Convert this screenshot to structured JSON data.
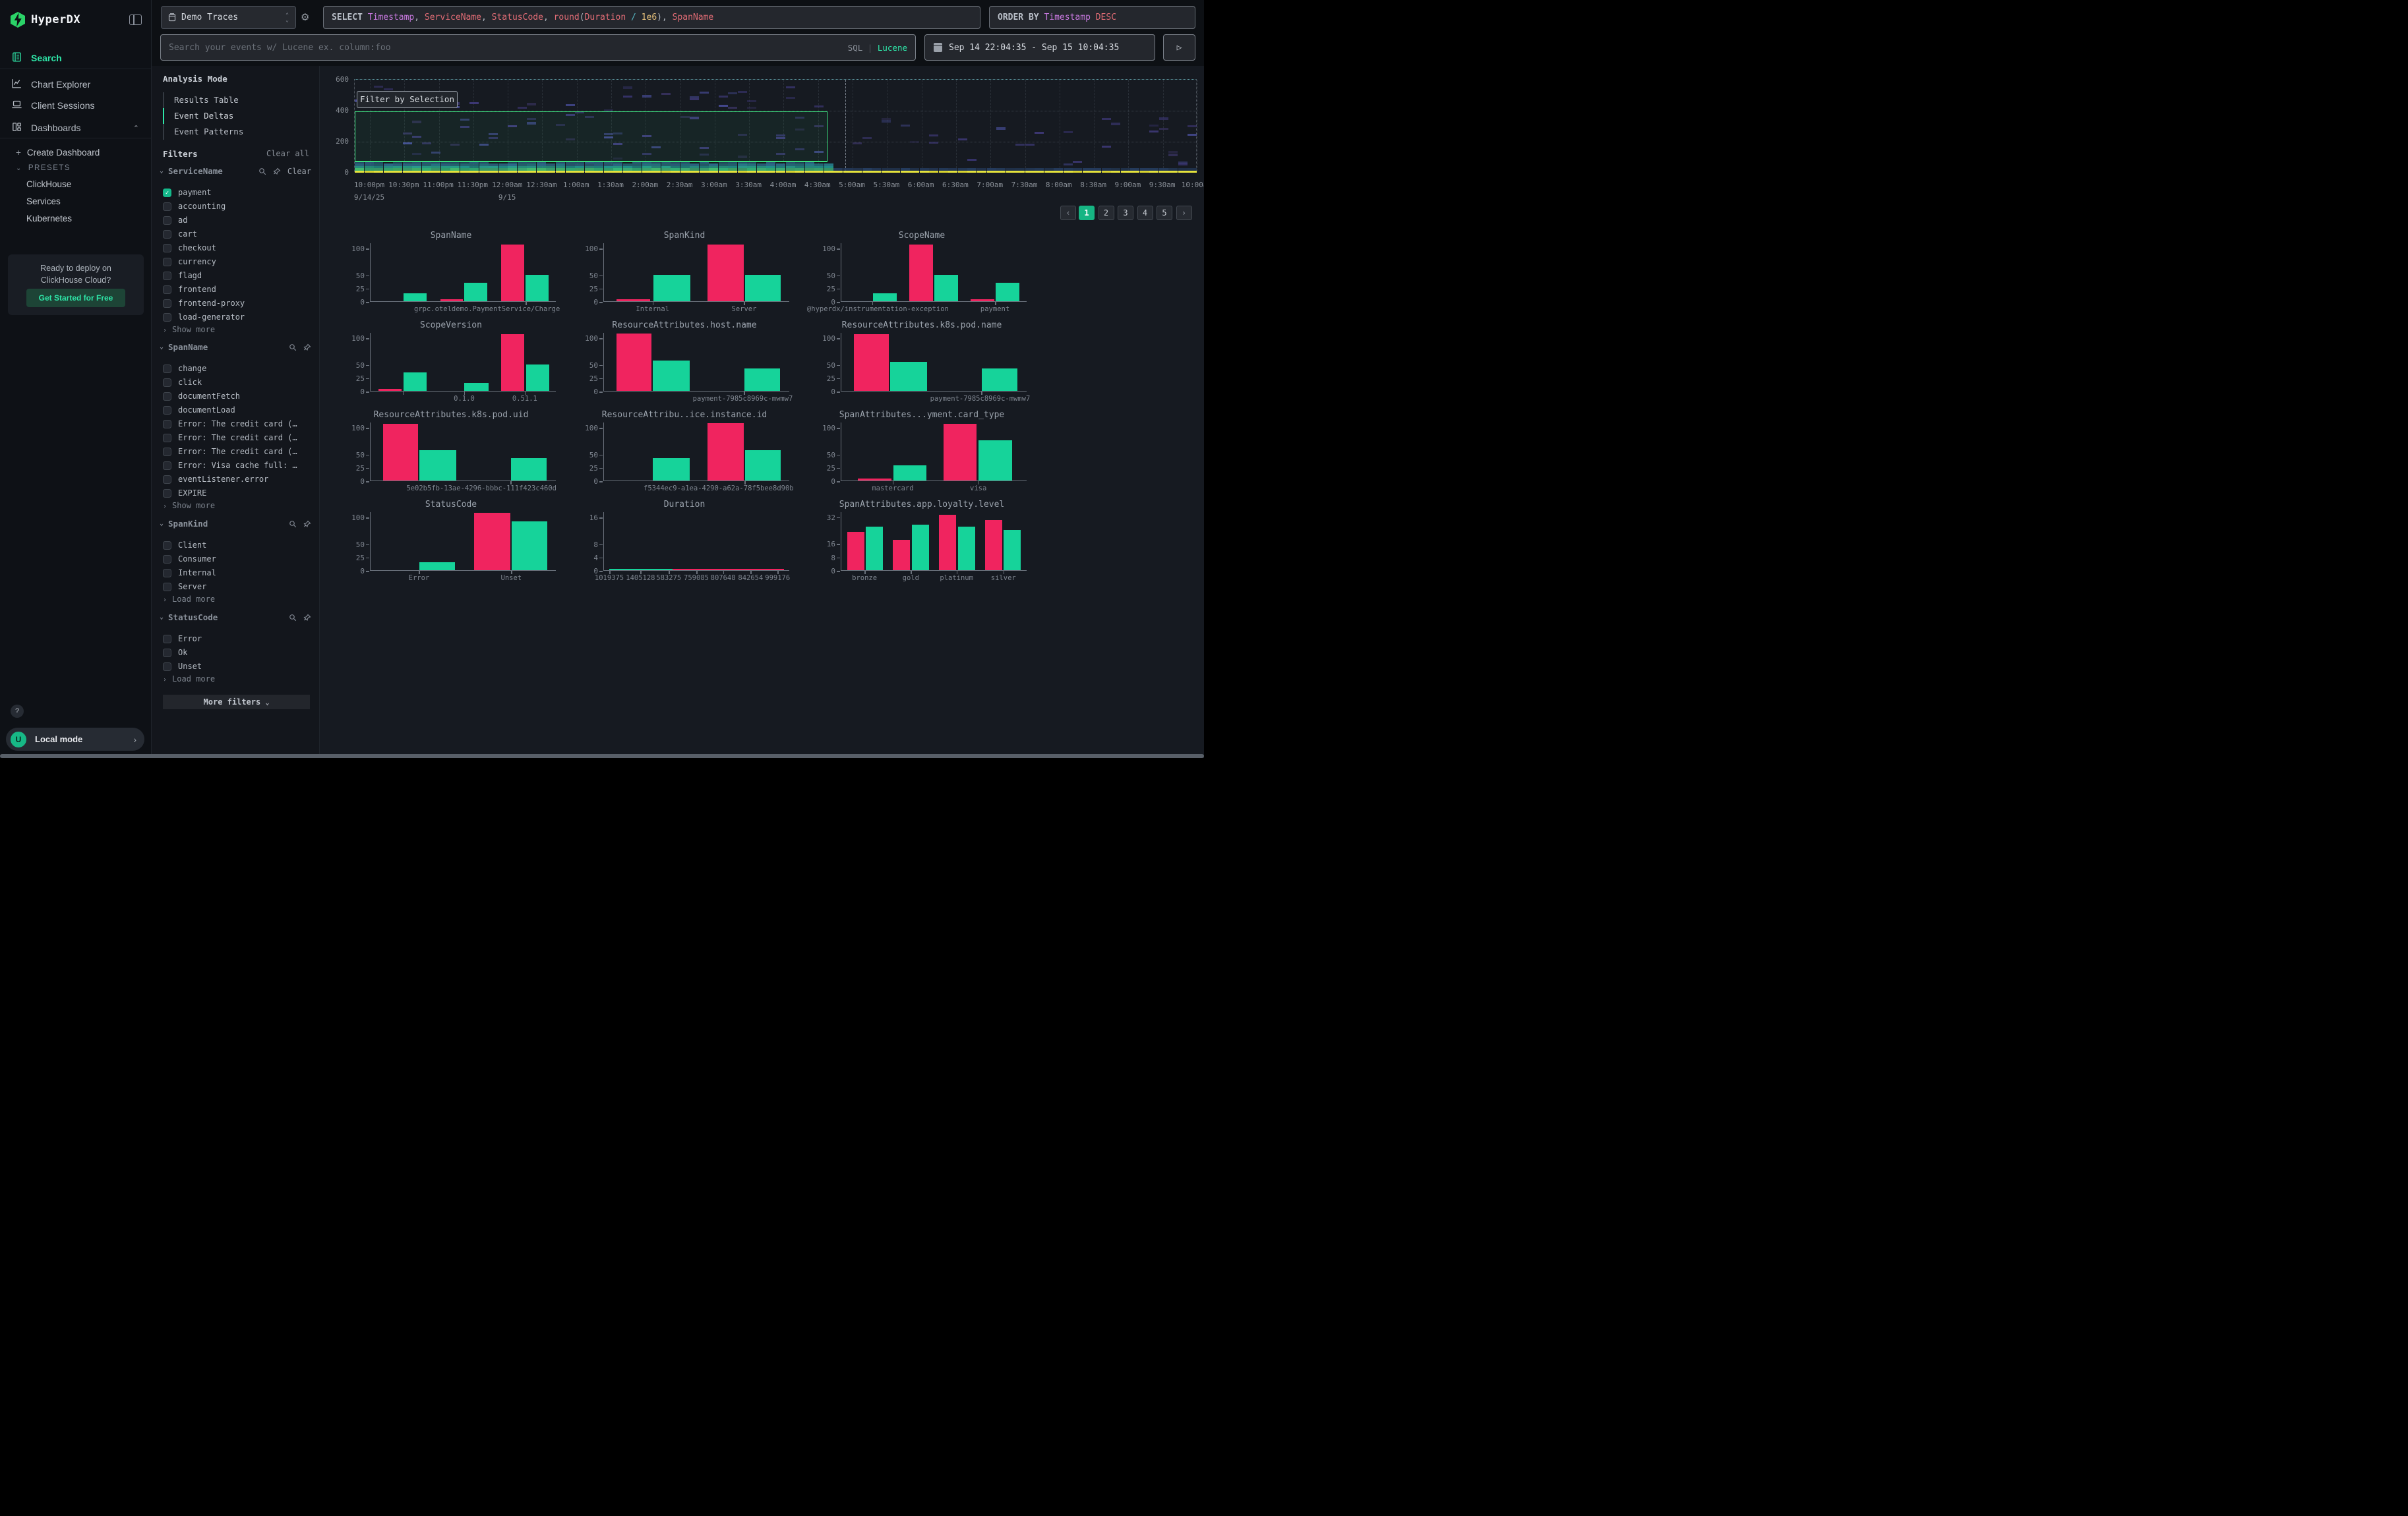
{
  "app": {
    "name": "HyperDX"
  },
  "colors": {
    "accent_green": "#2ee6a8",
    "bar_red": "#f0245f",
    "bar_green": "#16d39a",
    "heat_yellow": "#e5e33c",
    "selection_green": "#3ae17d",
    "checkbox_green": "#14b88a"
  },
  "sidebar": {
    "logo_text": "HyperDX",
    "nav": [
      {
        "label": "Search",
        "active": true,
        "icon": "journal-icon"
      },
      {
        "label": "Chart Explorer",
        "active": false,
        "icon": "chart-icon"
      },
      {
        "label": "Client Sessions",
        "active": false,
        "icon": "laptop-icon"
      },
      {
        "label": "Dashboards",
        "active": false,
        "icon": "dashboard-icon",
        "chevron": "up"
      }
    ],
    "create_dashboard": "Create Dashboard",
    "presets_label": "PRESETS",
    "presets": [
      "ClickHouse",
      "Services",
      "Kubernetes"
    ],
    "promo": {
      "line1": "Ready to deploy on",
      "line2": "ClickHouse Cloud?",
      "cta": "Get Started for Free"
    },
    "help_label": "?",
    "user_initial": "U",
    "local_mode_label": "Local mode"
  },
  "topbar": {
    "source": "Demo Traces",
    "select_tokens": [
      [
        "kw",
        "SELECT "
      ],
      [
        "purple",
        "Timestamp"
      ],
      [
        "punct",
        ", "
      ],
      [
        "red",
        "ServiceName"
      ],
      [
        "punct",
        ", "
      ],
      [
        "red",
        "StatusCode"
      ],
      [
        "punct",
        ", "
      ],
      [
        "red",
        "round"
      ],
      [
        "punct",
        "("
      ],
      [
        "red",
        "Duration"
      ],
      [
        "plain",
        " "
      ],
      [
        "cyan",
        "/"
      ],
      [
        "plain",
        " "
      ],
      [
        "gold",
        "1e6"
      ],
      [
        "punct",
        "), "
      ],
      [
        "red",
        "SpanName"
      ]
    ],
    "order_tokens": [
      [
        "kw",
        "ORDER BY "
      ],
      [
        "purple",
        "Timestamp "
      ],
      [
        "red",
        "DESC"
      ]
    ],
    "search_placeholder": "Search your events w/ Lucene ex. column:foo",
    "lang_sql": "SQL",
    "lang_sep": " | ",
    "lang_lucene": "Lucene",
    "date_range": "Sep 14 22:04:35 - Sep 15 10:04:35",
    "run_glyph": "▷"
  },
  "filters_panel": {
    "analysis_title": "Analysis Mode",
    "modes": [
      {
        "label": "Results Table",
        "active": false
      },
      {
        "label": "Event Deltas",
        "active": true
      },
      {
        "label": "Event Patterns",
        "active": false
      }
    ],
    "filters_title": "Filters",
    "clear_all": "Clear all",
    "groups": [
      {
        "name": "ServiceName",
        "clear": "Clear",
        "more": "Show more",
        "items": [
          {
            "label": "payment",
            "checked": true
          },
          {
            "label": "accounting"
          },
          {
            "label": "ad"
          },
          {
            "label": "cart"
          },
          {
            "label": "checkout"
          },
          {
            "label": "currency"
          },
          {
            "label": "flagd"
          },
          {
            "label": "frontend"
          },
          {
            "label": "frontend-proxy"
          },
          {
            "label": "load-generator"
          }
        ]
      },
      {
        "name": "SpanName",
        "more": "Show more",
        "items": [
          {
            "label": "change"
          },
          {
            "label": "click"
          },
          {
            "label": "documentFetch"
          },
          {
            "label": "documentLoad"
          },
          {
            "label": "Error: The credit card (…"
          },
          {
            "label": "Error: The credit card (…"
          },
          {
            "label": "Error: The credit card (…"
          },
          {
            "label": "Error: Visa cache full: …"
          },
          {
            "label": "eventListener.error"
          },
          {
            "label": "EXPIRE"
          }
        ]
      },
      {
        "name": "SpanKind",
        "more": "Load more",
        "items": [
          {
            "label": "Client"
          },
          {
            "label": "Consumer"
          },
          {
            "label": "Internal"
          },
          {
            "label": "Server"
          }
        ]
      },
      {
        "name": "StatusCode",
        "more": "Load more",
        "items": [
          {
            "label": "Error"
          },
          {
            "label": "Ok"
          },
          {
            "label": "Unset"
          }
        ]
      }
    ],
    "more_filters": "More filters"
  },
  "heatmap": {
    "filter_button": "Filter by Selection",
    "ylabels": [
      600,
      400,
      200,
      0
    ],
    "xlabels": [
      "10:00pm",
      "10:30pm",
      "11:00pm",
      "11:30pm",
      "12:00am",
      "12:30am",
      "1:00am",
      "1:30am",
      "2:00am",
      "2:30am",
      "3:00am",
      "3:30am",
      "4:00am",
      "4:30am",
      "5:00am",
      "5:30am",
      "6:00am",
      "6:30am",
      "7:00am",
      "7:30am",
      "8:00am",
      "8:30am",
      "9:00am",
      "9:30am",
      "10:00am"
    ],
    "dates": [
      {
        "text": "9/14/25",
        "tick": 0
      },
      {
        "text": "9/15",
        "tick": 4
      }
    ]
  },
  "pagination": {
    "prev": "‹",
    "pages": [
      "1",
      "2",
      "3",
      "4",
      "5"
    ],
    "active": "1",
    "next": "›"
  },
  "chart_data": {
    "heatmap": {
      "type": "heatmap",
      "title": "",
      "ylim": [
        0,
        600
      ],
      "yticks": [
        0,
        200,
        400,
        600
      ],
      "x_range": "9/14/25 10:00pm - 9/15 10:00am, 30min ticks",
      "selection": {
        "x_from": "10:00pm",
        "x_to": "5:00am",
        "y_from": 60,
        "y_to": 400
      },
      "description": "duration heatmap: dense teal/green band near 0 with solid yellow baseline across full width, sparse purple cells above; dense band ends at ~5:00am"
    },
    "mini": [
      {
        "type": "bar",
        "title": "SpanName",
        "ymax": 110,
        "yticks": [
          100,
          50,
          25,
          0
        ],
        "bars": [
          {
            "x": 17.7,
            "w": 12.4,
            "c": "g",
            "v": 15
          },
          {
            "x": 37.6,
            "w": 12.1,
            "c": "r",
            "v": 4
          },
          {
            "x": 50.7,
            "w": 12.4,
            "c": "g",
            "v": 35
          },
          {
            "x": 70.6,
            "w": 12.4,
            "c": "r",
            "v": 106
          },
          {
            "x": 83.7,
            "w": 12.4,
            "c": "g",
            "v": 50
          }
        ],
        "xticks": [
          83.7
        ],
        "xlabels": [
          {
            "p": 63,
            "t": "grpc.oteldemo.PaymentService/Charge"
          }
        ]
      },
      {
        "type": "bar",
        "title": "SpanKind",
        "ymax": 110,
        "yticks": [
          100,
          50,
          25,
          0
        ],
        "bars": [
          {
            "x": 6.7,
            "w": 18.3,
            "c": "r",
            "v": 4
          },
          {
            "x": 26.8,
            "w": 19.7,
            "c": "g",
            "v": 50
          },
          {
            "x": 56,
            "w": 19.4,
            "c": "r",
            "v": 106
          },
          {
            "x": 76,
            "w": 19.4,
            "c": "g",
            "v": 50
          }
        ],
        "xticks": [
          26.5,
          75.7
        ],
        "xlabels": [
          {
            "p": 26.5,
            "t": "Internal"
          },
          {
            "p": 75.7,
            "t": "Server"
          }
        ]
      },
      {
        "type": "bar",
        "title": "ScopeName",
        "ymax": 110,
        "yticks": [
          100,
          50,
          25,
          0
        ],
        "bars": [
          {
            "x": 17,
            "w": 12.8,
            "c": "g",
            "v": 15
          },
          {
            "x": 36.6,
            "w": 12.8,
            "c": "r",
            "v": 106
          },
          {
            "x": 50.2,
            "w": 12.8,
            "c": "g",
            "v": 50
          },
          {
            "x": 69.7,
            "w": 12.8,
            "c": "r",
            "v": 4
          },
          {
            "x": 83.3,
            "w": 12.8,
            "c": "g",
            "v": 35
          }
        ],
        "xticks": [
          17,
          83
        ],
        "xlabels": [
          {
            "p": 20,
            "t": "@hyperdx/instrumentation-exception"
          },
          {
            "p": 83,
            "t": "payment"
          }
        ]
      },
      {
        "type": "bar",
        "title": "ScopeVersion",
        "ymax": 110,
        "yticks": [
          100,
          50,
          25,
          0
        ],
        "bars": [
          {
            "x": 4.3,
            "w": 12.4,
            "c": "r",
            "v": 4
          },
          {
            "x": 17.7,
            "w": 12.4,
            "c": "g",
            "v": 35
          },
          {
            "x": 50.7,
            "w": 12.9,
            "c": "g",
            "v": 15
          },
          {
            "x": 70.6,
            "w": 12.4,
            "c": "r",
            "v": 106
          },
          {
            "x": 84,
            "w": 12.4,
            "c": "g",
            "v": 50
          }
        ],
        "xticks": [
          17.7,
          50.7,
          83.2
        ],
        "xlabels": [
          {
            "p": 50.7,
            "t": "0.1.0"
          },
          {
            "p": 83.3,
            "t": "0.51.1"
          }
        ]
      },
      {
        "type": "bar",
        "title": "ResourceAttributes.host.name",
        "ymax": 110,
        "yticks": [
          100,
          50,
          25,
          0
        ],
        "bars": [
          {
            "x": 6.7,
            "w": 19,
            "c": "r",
            "v": 107
          },
          {
            "x": 26.4,
            "w": 19.7,
            "c": "g",
            "v": 57
          },
          {
            "x": 75.7,
            "w": 19.4,
            "c": "g",
            "v": 42
          }
        ],
        "xticks": [
          75.7
        ],
        "xlabels": [
          {
            "p": 75,
            "t": "payment-7985c8969c-mwmw7"
          }
        ]
      },
      {
        "type": "bar",
        "title": "ResourceAttributes.k8s.pod.name",
        "ymax": 110,
        "yticks": [
          100,
          50,
          25,
          0
        ],
        "bars": [
          {
            "x": 6.7,
            "w": 19,
            "c": "r",
            "v": 106
          },
          {
            "x": 26.4,
            "w": 19.7,
            "c": "g",
            "v": 55
          },
          {
            "x": 75.7,
            "w": 19.4,
            "c": "g",
            "v": 42
          }
        ],
        "xticks": [
          75.7
        ],
        "xlabels": [
          {
            "p": 75,
            "t": "payment-7985c8969c-mwmw7"
          }
        ]
      },
      {
        "type": "bar",
        "title": "ResourceAttributes.k8s.pod.uid",
        "ymax": 110,
        "yticks": [
          100,
          50,
          25,
          0
        ],
        "bars": [
          {
            "x": 6.7,
            "w": 19,
            "c": "r",
            "v": 106
          },
          {
            "x": 26.4,
            "w": 19.7,
            "c": "g",
            "v": 57
          },
          {
            "x": 75.7,
            "w": 19.4,
            "c": "g",
            "v": 42
          }
        ],
        "xticks": [
          75.7
        ],
        "xlabels": [
          {
            "p": 60,
            "t": "5e02b5fb-13ae-4296-bbbc-111f423c460d"
          }
        ]
      },
      {
        "type": "bar",
        "title": "ResourceAttribu..ice.instance.id",
        "ymax": 110,
        "yticks": [
          100,
          50,
          25,
          0
        ],
        "bars": [
          {
            "x": 26.4,
            "w": 19.7,
            "c": "g",
            "v": 42
          },
          {
            "x": 56,
            "w": 19.4,
            "c": "r",
            "v": 107
          },
          {
            "x": 76,
            "w": 19.4,
            "c": "g",
            "v": 57
          }
        ],
        "xticks": [
          75.9
        ],
        "xlabels": [
          {
            "p": 62,
            "t": "f5344ec9-a1ea-4290-a62a-78f5bee8d90b"
          }
        ]
      },
      {
        "type": "bar",
        "title": "SpanAttributes...yment.card_type",
        "ymax": 110,
        "yticks": [
          100,
          50,
          25,
          0
        ],
        "bars": [
          {
            "x": 9,
            "w": 18,
            "c": "r",
            "v": 4
          },
          {
            "x": 28,
            "w": 18,
            "c": "g",
            "v": 28
          },
          {
            "x": 55,
            "w": 18,
            "c": "r",
            "v": 106
          },
          {
            "x": 74,
            "w": 18,
            "c": "g",
            "v": 75
          }
        ],
        "xticks": [
          28,
          74
        ],
        "xlabels": [
          {
            "p": 28,
            "t": "mastercard"
          },
          {
            "p": 74,
            "t": "visa"
          }
        ]
      },
      {
        "type": "bar",
        "title": "StatusCode",
        "ymax": 110,
        "yticks": [
          100,
          50,
          25,
          0
        ],
        "bars": [
          {
            "x": 26.4,
            "w": 19,
            "c": "g",
            "v": 15
          },
          {
            "x": 56,
            "w": 19.4,
            "c": "r",
            "v": 107
          },
          {
            "x": 76,
            "w": 19.4,
            "c": "g",
            "v": 92
          }
        ],
        "xticks": [
          26.4,
          76
        ],
        "xlabels": [
          {
            "p": 26.4,
            "t": "Error"
          },
          {
            "p": 76,
            "t": "Unset"
          }
        ]
      },
      {
        "type": "bar",
        "title": "Duration",
        "ymax": 17.6,
        "yticks": [
          16,
          8,
          4,
          0
        ],
        "bars": [
          {
            "x": 3,
            "w": 34,
            "c": "g",
            "v": 0.35
          },
          {
            "x": 37,
            "w": 60,
            "c": "r",
            "v": 0.35
          }
        ],
        "xticks": [
          3.2,
          20,
          35.2,
          50,
          64.4,
          79.2,
          93.7
        ],
        "xlabels": [
          {
            "p": 3.2,
            "t": "1019375"
          },
          {
            "p": 20,
            "t": "1405128"
          },
          {
            "p": 35.2,
            "t": "583275"
          },
          {
            "p": 50,
            "t": "759085"
          },
          {
            "p": 64.4,
            "t": "807648"
          },
          {
            "p": 79.2,
            "t": "842654"
          },
          {
            "p": 93.7,
            "t": "999176"
          }
        ]
      },
      {
        "type": "bar",
        "title": "SpanAttributes.app.loyalty.level",
        "ymax": 35,
        "yticks": [
          32,
          16,
          8,
          0
        ],
        "bars": [
          {
            "x": 3.2,
            "w": 9.3,
            "c": "r",
            "v": 23
          },
          {
            "x": 13.2,
            "w": 9.3,
            "c": "g",
            "v": 26
          },
          {
            "x": 27.8,
            "w": 9.3,
            "c": "r",
            "v": 18
          },
          {
            "x": 38,
            "w": 9.3,
            "c": "g",
            "v": 27
          },
          {
            "x": 52.7,
            "w": 9.3,
            "c": "r",
            "v": 33
          },
          {
            "x": 63,
            "w": 9.3,
            "c": "g",
            "v": 26
          },
          {
            "x": 77.6,
            "w": 9.3,
            "c": "r",
            "v": 30
          },
          {
            "x": 87.5,
            "w": 9.3,
            "c": "g",
            "v": 24
          }
        ],
        "xticks": [
          12.8,
          37.7,
          62.3,
          87.5
        ],
        "xlabels": [
          {
            "p": 12.8,
            "t": "bronze"
          },
          {
            "p": 37.7,
            "t": "gold"
          },
          {
            "p": 62.3,
            "t": "platinum"
          },
          {
            "p": 87.5,
            "t": "silver"
          }
        ]
      }
    ]
  }
}
